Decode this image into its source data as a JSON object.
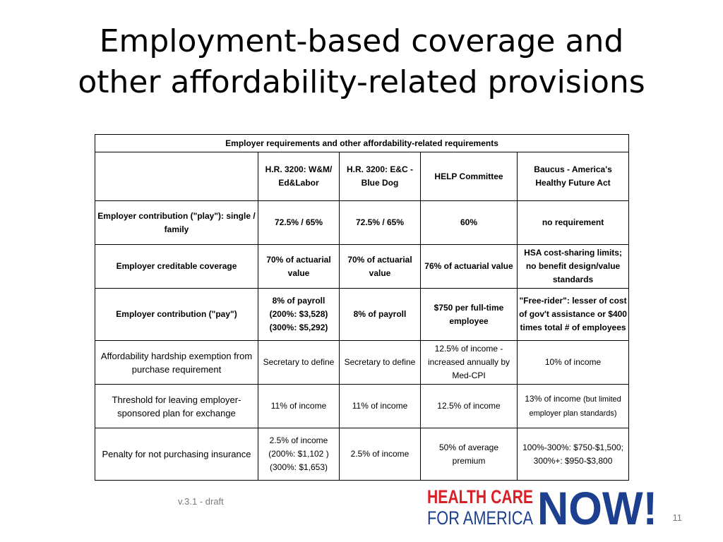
{
  "title": {
    "line1": "Employment-based coverage and",
    "line2": "other affordability-related provisions"
  },
  "table": {
    "caption": "Employer requirements and other affordability-related requirements",
    "headers": [
      "",
      "H.R. 3200: W&M/ Ed&Labor",
      "H.R. 3200: E&C - Blue Dog",
      "HELP Committee",
      "Baucus - America's Healthy Future Act"
    ],
    "rows": [
      {
        "label": "Employer contribution (\"play\"): single / family",
        "cells": [
          "72.5% / 65%",
          "72.5% / 65%",
          "60%",
          "no requirement"
        ]
      },
      {
        "label": "Employer creditable coverage",
        "cells": [
          "70% of actuarial value",
          "70% of actuarial value",
          "76% of actuarial value",
          "HSA cost-sharing limits; no benefit design/value standards"
        ]
      },
      {
        "label": "Employer contribution (\"pay\")",
        "cells": [
          "8% of payroll (200%: $3,528) (300%: $5,292)",
          "8% of payroll",
          "$750 per full-time employee",
          "\"Free-rider\": lesser of cost of gov't assistance or $400 times total # of employees"
        ]
      },
      {
        "label": "Affordability hardship exemption from purchase requirement",
        "cells": [
          "Secretary to define",
          "Secretary to define",
          "12.5% of income - increased annually by Med-CPI",
          "10% of income"
        ]
      },
      {
        "label": "Threshold for leaving employer-sponsored plan for exchange",
        "cells": [
          "11% of income",
          "11% of income",
          "12.5% of income",
          "13% of income"
        ],
        "extra": "(but limited employer plan standards)"
      },
      {
        "label": "Penalty for not purchasing insurance",
        "cells": [
          "2.5% of income (200%: $1,102 ) (300%: $1,653)",
          "2.5% of income",
          "50% of average premium",
          "100%-300%: $750-$1,500; 300%+: $950-$3,800"
        ]
      }
    ]
  },
  "footer": {
    "version": "v.3.1 - draft",
    "page_number": "11"
  },
  "logo": {
    "line1": "HEALTH CARE",
    "line2": "FOR AMERICA",
    "word": "NOW!",
    "colors": {
      "red": "#d92027",
      "blue": "#1c3f8f"
    }
  }
}
